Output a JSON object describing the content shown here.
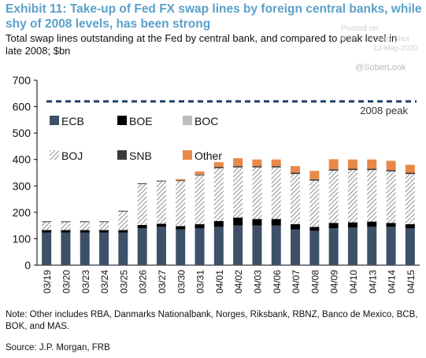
{
  "header": {
    "title": "Exhibit 11: Take-up of Fed FX swap lines by foreign central banks, while shy of 2008 levels, has been strong",
    "subtitle": "Total swap lines outstanding at the Fed by central bank, and compared to peak level in late 2008; $bn"
  },
  "watermark": {
    "posted": "Posted on",
    "source": "WSJ: The Daily Shot",
    "date": "12-May-2020",
    "handle": "@SoberLook"
  },
  "footer": {
    "note": "Note: Other includes RBA, Danmarks Nationalbank, Norges, Riksbank, RBNZ, Banco de Mexico, BCB, BOK, and MAS.",
    "source": "Source: J.P. Morgan,  FRB"
  },
  "chart_data": {
    "type": "bar",
    "stacked": true,
    "categories": [
      "03/19",
      "03/20",
      "03/23",
      "03/24",
      "03/25",
      "03/26",
      "03/27",
      "03/30",
      "03/31",
      "04/01",
      "04/02",
      "04/03",
      "04/06",
      "04/07",
      "04/08",
      "04/09",
      "04/10",
      "04/13",
      "04/14",
      "04/15"
    ],
    "series": [
      {
        "name": "ECB",
        "color": "#3e5068",
        "pattern": "solid",
        "values": [
          123,
          123,
          123,
          123,
          123,
          140,
          145,
          135,
          140,
          145,
          150,
          150,
          150,
          135,
          130,
          140,
          142,
          145,
          145,
          140
        ]
      },
      {
        "name": "BOE",
        "color": "#000000",
        "pattern": "solid",
        "values": [
          10,
          10,
          10,
          10,
          10,
          12,
          12,
          13,
          15,
          22,
          30,
          25,
          25,
          20,
          15,
          20,
          20,
          20,
          15,
          15
        ]
      },
      {
        "name": "BOC",
        "color": "#bdbdbd",
        "pattern": "solid",
        "values": [
          0,
          0,
          0,
          0,
          0,
          0,
          0,
          0,
          0,
          0,
          0,
          0,
          0,
          0,
          0,
          0,
          0,
          0,
          0,
          0
        ]
      },
      {
        "name": "BOJ",
        "color": "#9a9a9a",
        "pattern": "hatch",
        "values": [
          30,
          30,
          30,
          30,
          70,
          155,
          160,
          170,
          185,
          200,
          190,
          195,
          195,
          190,
          175,
          198,
          198,
          195,
          195,
          190
        ]
      },
      {
        "name": "SNB",
        "color": "#3a3a3a",
        "pattern": "solid",
        "values": [
          3,
          3,
          3,
          3,
          3,
          3,
          3,
          3,
          3,
          5,
          5,
          5,
          5,
          5,
          5,
          5,
          5,
          5,
          5,
          5
        ]
      },
      {
        "name": "Other",
        "color": "#e8894a",
        "pattern": "solid",
        "values": [
          0,
          0,
          0,
          0,
          0,
          0,
          0,
          5,
          12,
          18,
          30,
          25,
          25,
          25,
          32,
          38,
          35,
          35,
          35,
          30
        ]
      }
    ],
    "reference_line": {
      "label": "2008 peak",
      "value": 620,
      "color": "#1f3f66"
    },
    "ylim": [
      0,
      700
    ],
    "yticks": [
      0,
      100,
      200,
      300,
      400,
      500,
      600,
      700
    ],
    "xlabel": "",
    "ylabel": "",
    "grid": false,
    "legend": "top-left"
  }
}
